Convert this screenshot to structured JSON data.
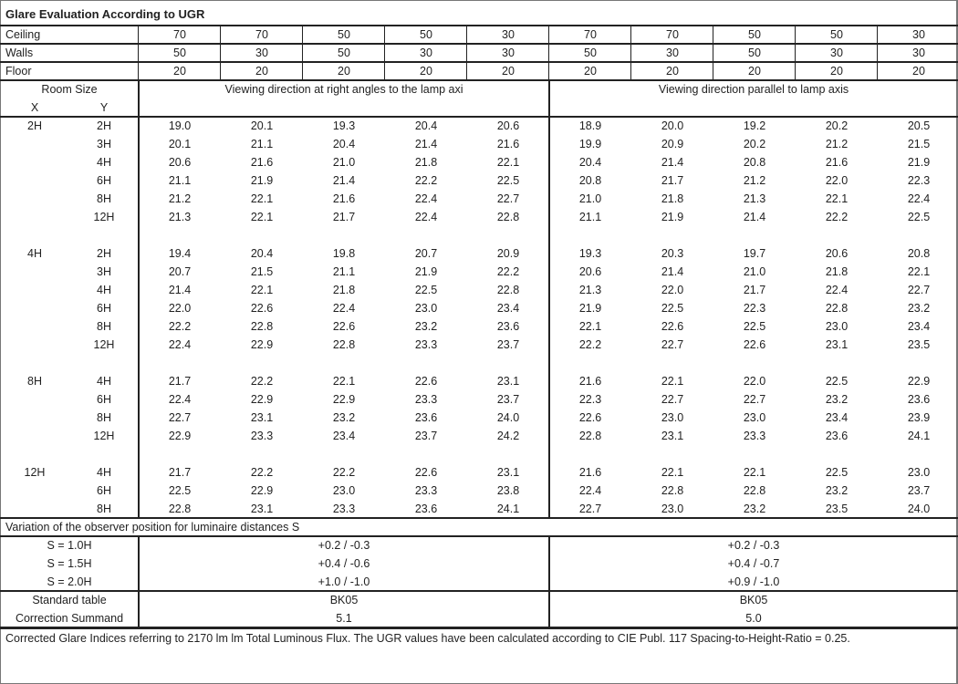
{
  "title": "Glare Evaluation According to UGR",
  "reflectances": [
    {
      "label": "Ceiling",
      "values": [
        "70",
        "70",
        "50",
        "50",
        "30",
        "70",
        "70",
        "50",
        "50",
        "30"
      ]
    },
    {
      "label": "Walls",
      "values": [
        "50",
        "30",
        "50",
        "30",
        "30",
        "50",
        "30",
        "50",
        "30",
        "30"
      ]
    },
    {
      "label": "Floor",
      "values": [
        "20",
        "20",
        "20",
        "20",
        "20",
        "20",
        "20",
        "20",
        "20",
        "20"
      ]
    }
  ],
  "header": {
    "room_size": "Room Size",
    "x": "X",
    "y": "Y",
    "perpendicular": "Viewing direction at right angles to the lamp axi",
    "parallel": "Viewing direction parallel to lamp axis"
  },
  "groups": [
    {
      "x": "2H",
      "rows": [
        {
          "y": "2H",
          "values": [
            "19.0",
            "20.1",
            "19.3",
            "20.4",
            "20.6",
            "18.9",
            "20.0",
            "19.2",
            "20.2",
            "20.5"
          ]
        },
        {
          "y": "3H",
          "values": [
            "20.1",
            "21.1",
            "20.4",
            "21.4",
            "21.6",
            "19.9",
            "20.9",
            "20.2",
            "21.2",
            "21.5"
          ]
        },
        {
          "y": "4H",
          "values": [
            "20.6",
            "21.6",
            "21.0",
            "21.8",
            "22.1",
            "20.4",
            "21.4",
            "20.8",
            "21.6",
            "21.9"
          ]
        },
        {
          "y": "6H",
          "values": [
            "21.1",
            "21.9",
            "21.4",
            "22.2",
            "22.5",
            "20.8",
            "21.7",
            "21.2",
            "22.0",
            "22.3"
          ]
        },
        {
          "y": "8H",
          "values": [
            "21.2",
            "22.1",
            "21.6",
            "22.4",
            "22.7",
            "21.0",
            "21.8",
            "21.3",
            "22.1",
            "22.4"
          ]
        },
        {
          "y": "12H",
          "values": [
            "21.3",
            "22.1",
            "21.7",
            "22.4",
            "22.8",
            "21.1",
            "21.9",
            "21.4",
            "22.2",
            "22.5"
          ]
        }
      ]
    },
    {
      "x": "4H",
      "rows": [
        {
          "y": "2H",
          "values": [
            "19.4",
            "20.4",
            "19.8",
            "20.7",
            "20.9",
            "19.3",
            "20.3",
            "19.7",
            "20.6",
            "20.8"
          ]
        },
        {
          "y": "3H",
          "values": [
            "20.7",
            "21.5",
            "21.1",
            "21.9",
            "22.2",
            "20.6",
            "21.4",
            "21.0",
            "21.8",
            "22.1"
          ]
        },
        {
          "y": "4H",
          "values": [
            "21.4",
            "22.1",
            "21.8",
            "22.5",
            "22.8",
            "21.3",
            "22.0",
            "21.7",
            "22.4",
            "22.7"
          ]
        },
        {
          "y": "6H",
          "values": [
            "22.0",
            "22.6",
            "22.4",
            "23.0",
            "23.4",
            "21.9",
            "22.5",
            "22.3",
            "22.8",
            "23.2"
          ]
        },
        {
          "y": "8H",
          "values": [
            "22.2",
            "22.8",
            "22.6",
            "23.2",
            "23.6",
            "22.1",
            "22.6",
            "22.5",
            "23.0",
            "23.4"
          ]
        },
        {
          "y": "12H",
          "values": [
            "22.4",
            "22.9",
            "22.8",
            "23.3",
            "23.7",
            "22.2",
            "22.7",
            "22.6",
            "23.1",
            "23.5"
          ]
        }
      ]
    },
    {
      "x": "8H",
      "rows": [
        {
          "y": "4H",
          "values": [
            "21.7",
            "22.2",
            "22.1",
            "22.6",
            "23.1",
            "21.6",
            "22.1",
            "22.0",
            "22.5",
            "22.9"
          ]
        },
        {
          "y": "6H",
          "values": [
            "22.4",
            "22.9",
            "22.9",
            "23.3",
            "23.7",
            "22.3",
            "22.7",
            "22.7",
            "23.2",
            "23.6"
          ]
        },
        {
          "y": "8H",
          "values": [
            "22.7",
            "23.1",
            "23.2",
            "23.6",
            "24.0",
            "22.6",
            "23.0",
            "23.0",
            "23.4",
            "23.9"
          ]
        },
        {
          "y": "12H",
          "values": [
            "22.9",
            "23.3",
            "23.4",
            "23.7",
            "24.2",
            "22.8",
            "23.1",
            "23.3",
            "23.6",
            "24.1"
          ]
        }
      ]
    },
    {
      "x": "12H",
      "rows": [
        {
          "y": "4H",
          "values": [
            "21.7",
            "22.2",
            "22.2",
            "22.6",
            "23.1",
            "21.6",
            "22.1",
            "22.1",
            "22.5",
            "23.0"
          ]
        },
        {
          "y": "6H",
          "values": [
            "22.5",
            "22.9",
            "23.0",
            "23.3",
            "23.8",
            "22.4",
            "22.8",
            "22.8",
            "23.2",
            "23.7"
          ]
        },
        {
          "y": "8H",
          "values": [
            "22.8",
            "23.1",
            "23.3",
            "23.6",
            "24.1",
            "22.7",
            "23.0",
            "23.2",
            "23.5",
            "24.0"
          ]
        }
      ]
    }
  ],
  "variation": {
    "title": "Variation of the observer position for luminaire distances S",
    "rows": [
      {
        "label": "S = 1.0H",
        "perpendicular": "+0.2 / -0.3",
        "parallel": "+0.2 / -0.3"
      },
      {
        "label": "S = 1.5H",
        "perpendicular": "+0.4 / -0.6",
        "parallel": "+0.4 / -0.7"
      },
      {
        "label": "S = 2.0H",
        "perpendicular": "+1.0 / -1.0",
        "parallel": "+0.9 / -1.0"
      }
    ]
  },
  "standard": [
    {
      "label": "Standard table",
      "perpendicular": "BK05",
      "parallel": "BK05"
    },
    {
      "label": "Correction Summand",
      "perpendicular": "5.1",
      "parallel": "5.0"
    }
  ],
  "footnote": "Corrected Glare Indices referring to 2170 lm lm Total Luminous Flux. The UGR values have been calculated according to CIE Publ. 117    Spacing-to-Height-Ratio = 0.25."
}
